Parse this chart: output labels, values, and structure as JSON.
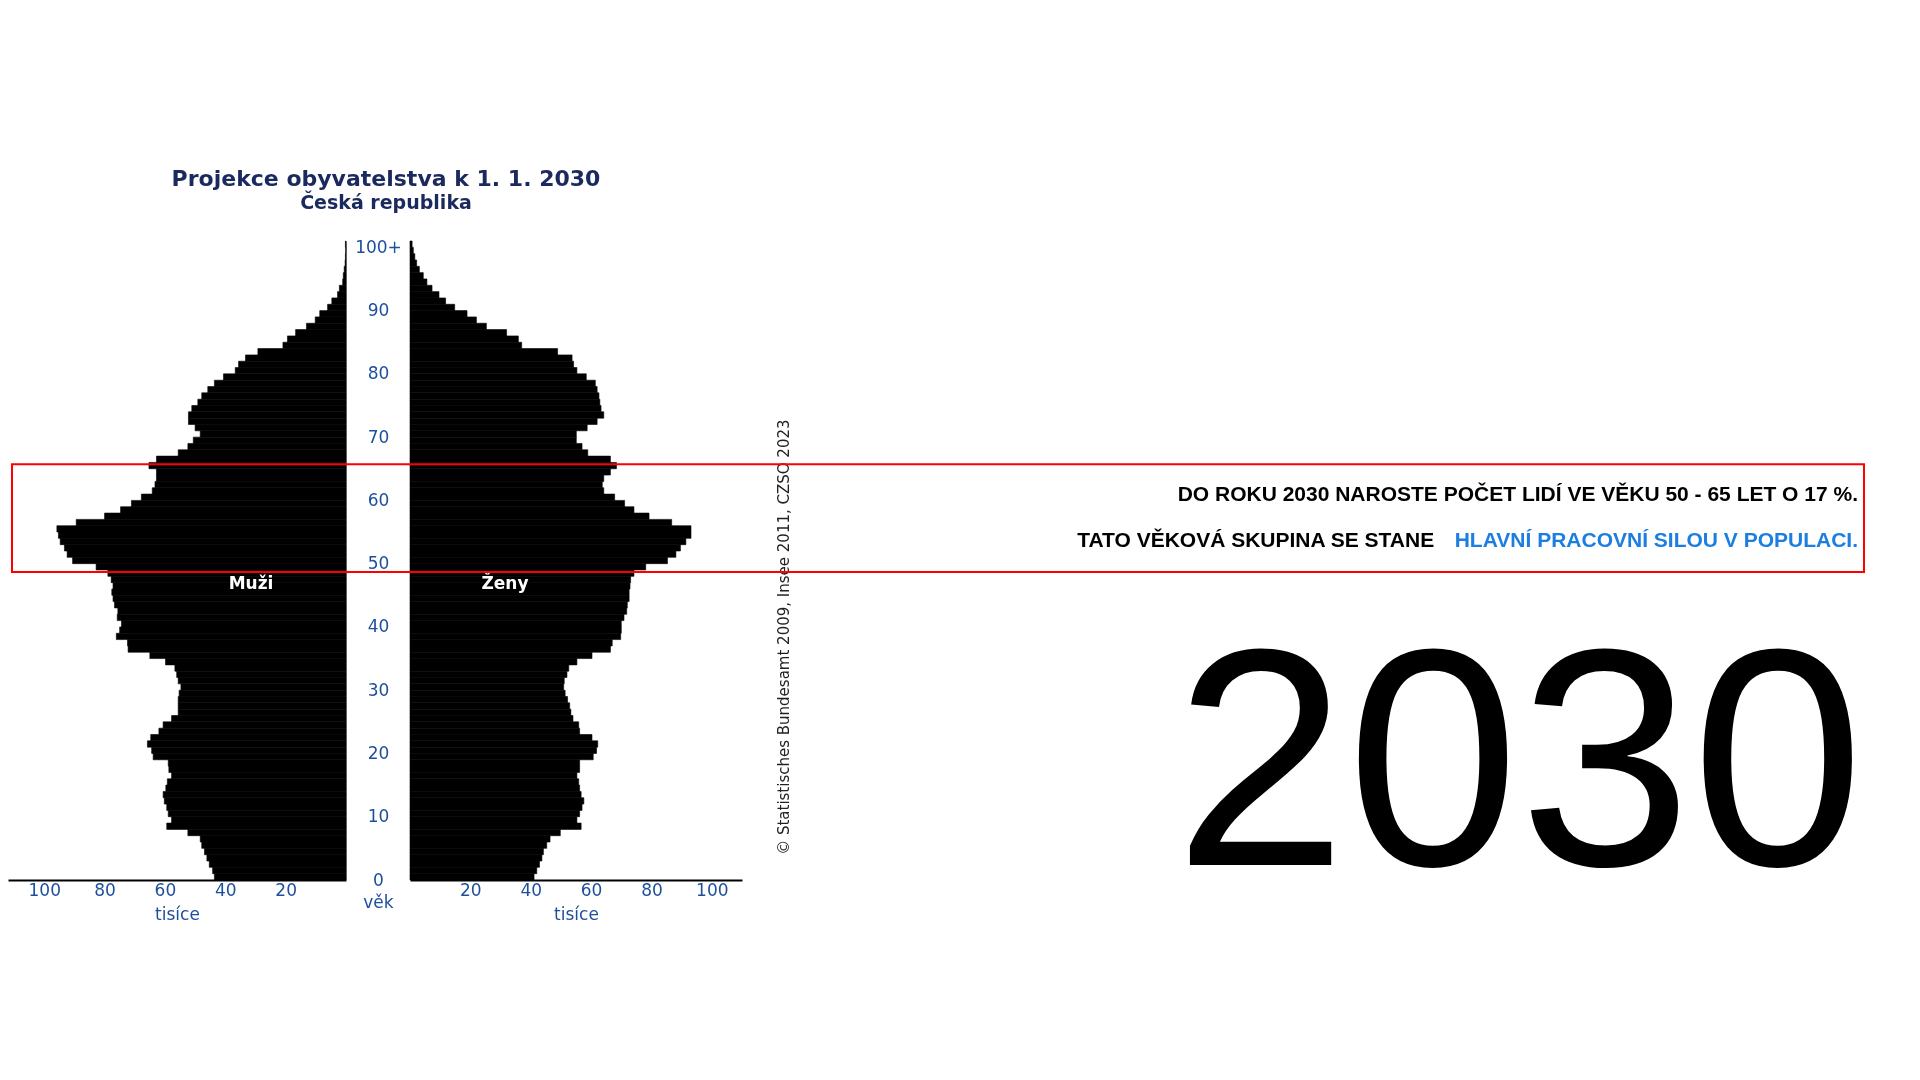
{
  "chart_data": [
    {
      "type": "bar",
      "orientation": "horizontal",
      "title": "Projekce obyvatelstva k 1. 1. 2030",
      "subtitle": "Česká republika",
      "xlabel": "tisíce",
      "series": [
        {
          "name": "Muži",
          "color": "#000000",
          "values": [
            0.2,
            0.1,
            0.2,
            0.3,
            0.6,
            0.9,
            1.1,
            2.2,
            2.8,
            4.7,
            6.1,
            8.7,
            10.2,
            13.1,
            16.7,
            19.4,
            20.9,
            29.2,
            33.3,
            35.6,
            36.7,
            40.6,
            43.6,
            45.8,
            47.8,
            49.1,
            51.1,
            52.2,
            52.2,
            50.0,
            48.3,
            50.6,
            52.4,
            55.6,
            62.8,
            65.3,
            62.8,
            62.8,
            63.3,
            64.2,
            67.8,
            71.1,
            74.7,
            80.0,
            89.4,
            95.8,
            95.3,
            94.7,
            93.3,
            92.4,
            90.6,
            82.8,
            78.9,
            77.8,
            77.2,
            77.6,
            77.2,
            76.7,
            75.6,
            75.8,
            74.4,
            75.0,
            76.1,
            72.4,
            72.2,
            65.0,
            59.8,
            56.7,
            56.1,
            55.6,
            54.7,
            55.3,
            55.6,
            55.6,
            55.6,
            57.8,
            60.6,
            62.0,
            64.7,
            65.8,
            64.4,
            63.9,
            58.9,
            58.7,
            57.8,
            59.2,
            59.7,
            60.6,
            60.2,
            59.4,
            58.9,
            57.8,
            59.4,
            52.4,
            48.3,
            47.8,
            46.9,
            46.1,
            45.3,
            44.2,
            43.6
          ]
        }
      ],
      "xlim": [
        112,
        0
      ],
      "xticks": [
        100,
        80,
        60,
        40,
        20
      ],
      "tick_labels": "x"
    },
    {
      "type": "bar",
      "orientation": "horizontal",
      "xlabel": "tisíce",
      "ylabel": "věk",
      "categories": [
        "100+",
        null,
        null,
        null,
        null,
        null,
        null,
        null,
        null,
        null,
        "90",
        null,
        null,
        null,
        null,
        null,
        null,
        null,
        null,
        null,
        "80",
        null,
        null,
        null,
        null,
        null,
        null,
        null,
        null,
        null,
        "70",
        null,
        null,
        null,
        null,
        null,
        null,
        null,
        null,
        null,
        "60",
        null,
        null,
        null,
        null,
        null,
        null,
        null,
        null,
        null,
        "50",
        null,
        null,
        null,
        null,
        null,
        null,
        null,
        null,
        null,
        "40",
        null,
        null,
        null,
        null,
        null,
        null,
        null,
        null,
        null,
        "30",
        null,
        null,
        null,
        null,
        null,
        null,
        null,
        null,
        null,
        "20",
        null,
        null,
        null,
        null,
        null,
        null,
        null,
        null,
        null,
        "10",
        null,
        null,
        null,
        null,
        null,
        null,
        null,
        null,
        null,
        "0"
      ],
      "series": [
        {
          "name": "Ženy",
          "color": "#000000",
          "values": [
            0.7,
            1.1,
            1.6,
            2.2,
            3.1,
            4.4,
            5.6,
            7.3,
            9.6,
            11.8,
            14.8,
            18.9,
            22.0,
            25.3,
            32.0,
            35.9,
            37.0,
            48.9,
            53.7,
            54.2,
            55.3,
            58.4,
            61.4,
            62.0,
            62.6,
            62.9,
            63.3,
            64.2,
            62.0,
            58.7,
            55.1,
            55.1,
            57.0,
            58.9,
            66.4,
            68.4,
            66.4,
            64.2,
            63.7,
            64.2,
            67.8,
            71.1,
            74.2,
            79.2,
            86.7,
            93.1,
            93.1,
            91.4,
            89.6,
            88.1,
            85.3,
            78.1,
            74.2,
            73.1,
            72.9,
            72.6,
            72.6,
            72.0,
            71.8,
            70.9,
            70.0,
            70.0,
            69.8,
            67.0,
            66.4,
            60.3,
            55.3,
            52.6,
            52.0,
            51.1,
            50.9,
            51.4,
            52.2,
            52.9,
            53.3,
            54.0,
            55.9,
            56.2,
            60.3,
            62.2,
            61.8,
            60.7,
            56.2,
            56.2,
            55.3,
            55.9,
            56.2,
            56.7,
            57.6,
            57.0,
            56.2,
            55.3,
            56.7,
            49.8,
            46.4,
            45.3,
            44.2,
            43.7,
            42.9,
            42.0,
            41.1
          ]
        }
      ],
      "xlim": [
        0,
        110
      ],
      "xticks": [
        20,
        40,
        60,
        80,
        100
      ],
      "annotations": [
        "© Statistisches Bundesamt 2009, Insee 2011, CZSO 2023"
      ]
    },
    {
      "type": "other",
      "annotations": [
        "DO ROKU 2030 NAROSTE POČET LIDÍ VE VĚKU 50 - 65 LET O 17 %.",
        "TATO VĚKOVÁ SKUPINA SE STANE",
        "HLAVNÍ PRACOVNÍ SILOU V POPULACI.",
        "2030"
      ]
    }
  ]
}
